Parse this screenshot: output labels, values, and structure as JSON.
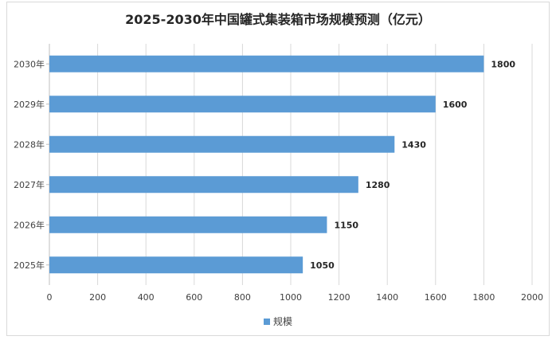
{
  "title": "2025-2030年中国罐式集装箱市场规模预测（亿元）",
  "colors": {
    "bar": "#5b9bd5",
    "grid": "#d9d9d9",
    "axis": "#bfbfbf"
  },
  "chart_data": {
    "type": "bar",
    "orientation": "horizontal",
    "title": "2025-2030年中国罐式集装箱市场规模预测（亿元）",
    "categories": [
      "2025年",
      "2026年",
      "2027年",
      "2028年",
      "2029年",
      "2030年"
    ],
    "series": [
      {
        "name": "规模",
        "values": [
          1050,
          1150,
          1280,
          1430,
          1600,
          1800
        ]
      }
    ],
    "xlim": [
      0,
      2000
    ],
    "xticks": [
      0,
      200,
      400,
      600,
      800,
      1000,
      1200,
      1400,
      1600,
      1800,
      2000
    ],
    "grid": "vertical",
    "legend": "bottom",
    "data_labels": true
  }
}
